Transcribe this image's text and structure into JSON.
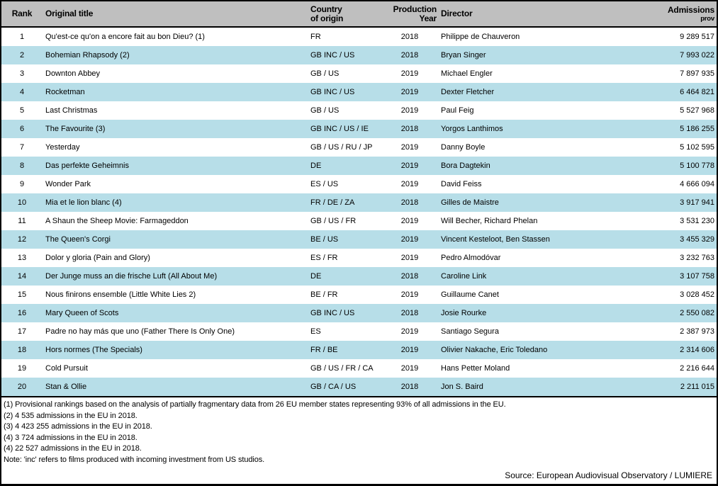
{
  "colors": {
    "header_bg": "#BFBFBF",
    "row_alt_bg": "#B7DEE8",
    "border": "#000000"
  },
  "table": {
    "header": {
      "rank": "Rank",
      "title": "Original title",
      "country_line1": "Country",
      "country_line2": "of origin",
      "year_line1": "Production",
      "year_line2": "Year",
      "director": "Director",
      "admissions": "Admissions",
      "admissions_sub": "prov"
    },
    "rows": [
      {
        "rank": "1",
        "title": "Qu'est-ce qu'on a encore fait au bon Dieu? (1)",
        "country": "FR",
        "year": "2018",
        "director": "Philippe de Chauveron",
        "admissions": "9 289 517"
      },
      {
        "rank": "2",
        "title": "Bohemian Rhapsody (2)",
        "country": "GB INC / US",
        "year": "2018",
        "director": "Bryan Singer",
        "admissions": "7 993 022"
      },
      {
        "rank": "3",
        "title": "Downton Abbey",
        "country": "GB / US",
        "year": "2019",
        "director": "Michael Engler",
        "admissions": "7 897 935"
      },
      {
        "rank": "4",
        "title": "Rocketman",
        "country": "GB INC / US",
        "year": "2019",
        "director": "Dexter Fletcher",
        "admissions": "6 464 821"
      },
      {
        "rank": "5",
        "title": "Last Christmas",
        "country": "GB / US",
        "year": "2019",
        "director": "Paul Feig",
        "admissions": "5 527 968"
      },
      {
        "rank": "6",
        "title": "The Favourite (3)",
        "country": "GB INC / US / IE",
        "year": "2018",
        "director": "Yorgos Lanthimos",
        "admissions": "5 186 255"
      },
      {
        "rank": "7",
        "title": "Yesterday",
        "country": "GB / US / RU / JP",
        "year": "2019",
        "director": "Danny Boyle",
        "admissions": "5 102 595"
      },
      {
        "rank": "8",
        "title": "Das perfekte Geheimnis",
        "country": "DE",
        "year": "2019",
        "director": "Bora Dagtekin",
        "admissions": "5 100 778"
      },
      {
        "rank": "9",
        "title": "Wonder Park",
        "country": "ES / US",
        "year": "2019",
        "director": "David Feiss",
        "admissions": "4 666 094"
      },
      {
        "rank": "10",
        "title": "Mia et le lion blanc (4)",
        "country": "FR / DE / ZA",
        "year": "2018",
        "director": "Gilles de Maistre",
        "admissions": "3 917 941"
      },
      {
        "rank": "11",
        "title": "A Shaun the Sheep Movie: Farmageddon",
        "country": "GB / US / FR",
        "year": "2019",
        "director": "Will Becher, Richard Phelan",
        "admissions": "3 531 230"
      },
      {
        "rank": "12",
        "title": "The Queen's Corgi",
        "country": "BE / US",
        "year": "2019",
        "director": "Vincent Kesteloot, Ben Stassen",
        "admissions": "3 455 329"
      },
      {
        "rank": "13",
        "title": "Dolor y gloria (Pain and Glory)",
        "country": "ES / FR",
        "year": "2019",
        "director": "Pedro Almodóvar",
        "admissions": "3 232 763"
      },
      {
        "rank": "14",
        "title": "Der Junge muss an die frische Luft (All About Me)",
        "country": "DE",
        "year": "2018",
        "director": "Caroline Link",
        "admissions": "3 107 758"
      },
      {
        "rank": "15",
        "title": "Nous finirons ensemble (Little White Lies 2)",
        "country": "BE / FR",
        "year": "2019",
        "director": "Guillaume Canet",
        "admissions": "3 028 452"
      },
      {
        "rank": "16",
        "title": "Mary Queen of Scots",
        "country": "GB INC / US",
        "year": "2018",
        "director": "Josie Rourke",
        "admissions": "2 550 082"
      },
      {
        "rank": "17",
        "title": "Padre no hay más que uno (Father There Is Only One)",
        "country": "ES",
        "year": "2019",
        "director": "Santiago Segura",
        "admissions": "2 387 973"
      },
      {
        "rank": "18",
        "title": "Hors normes (The Specials)",
        "country": "FR / BE",
        "year": "2019",
        "director": "Olivier Nakache, Eric Toledano",
        "admissions": "2 314 606"
      },
      {
        "rank": "19",
        "title": "Cold Pursuit",
        "country": "GB / US / FR / CA",
        "year": "2019",
        "director": "Hans Petter Moland",
        "admissions": "2 216 644"
      },
      {
        "rank": "20",
        "title": "Stan & Ollie",
        "country": "GB / CA / US",
        "year": "2018",
        "director": "Jon S. Baird",
        "admissions": "2 211 015"
      }
    ]
  },
  "notes": [
    "(1) Provisional rankings based on the analysis of partially fragmentary data from 26 EU member states representing 93% of all admissions in the EU.",
    "(2) 4 535 admissions in the EU in 2018.",
    "(3) 4 423 255 admissions in the EU in 2018.",
    "(4) 3 724 admissions in the EU in 2018.",
    "(4) 22 527 admissions in the EU in 2018.",
    "Note: 'inc' refers to films produced with incoming investment from US studios."
  ],
  "source": "Source: European Audiovisual Observatory / LUMIERE"
}
